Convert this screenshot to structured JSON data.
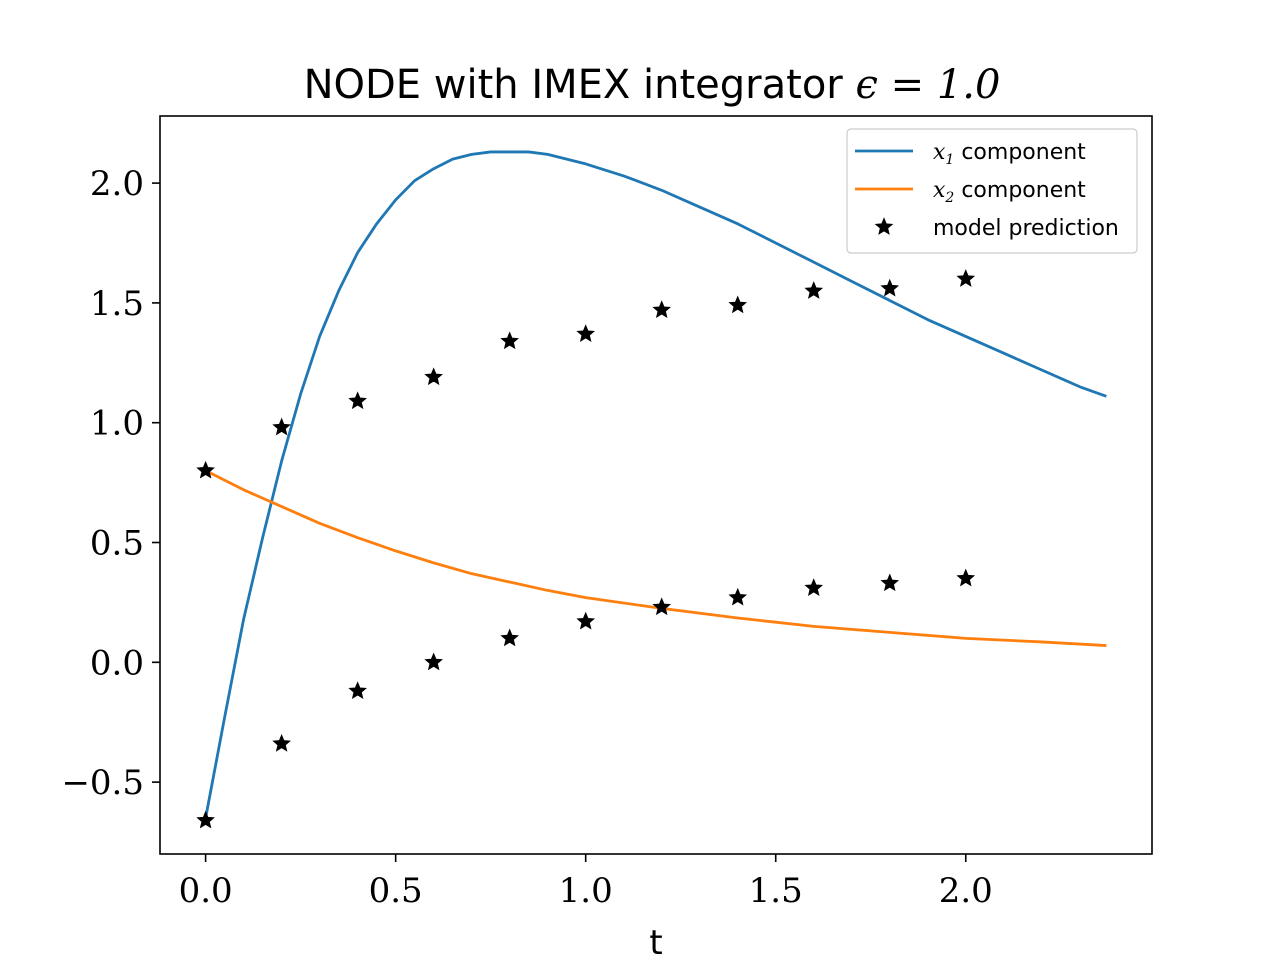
{
  "chart_data": {
    "type": "line",
    "title_text": "NODE with IMEX integrator ",
    "title_math": "ϵ = 1.0",
    "xlabel": "t",
    "ylabel": "",
    "xlim": [
      -0.12,
      2.49
    ],
    "ylim": [
      -0.8,
      2.28
    ],
    "xticks": [
      0.0,
      0.5,
      1.0,
      1.5,
      2.0
    ],
    "xtick_labels": [
      "0.0",
      "0.5",
      "1.0",
      "1.5",
      "2.0"
    ],
    "yticks": [
      -0.5,
      0.0,
      0.5,
      1.0,
      1.5,
      2.0
    ],
    "ytick_labels": [
      "−0.5",
      "0.0",
      "0.5",
      "1.0",
      "1.5",
      "2.0"
    ],
    "grid": false,
    "legend_position": "top-right",
    "series": [
      {
        "name_math": "x",
        "name_sub": "1",
        "name_text": " component",
        "kind": "line",
        "color": "#1f77b4",
        "x": [
          0.0,
          0.05,
          0.1,
          0.15,
          0.2,
          0.25,
          0.3,
          0.35,
          0.4,
          0.45,
          0.5,
          0.55,
          0.6,
          0.65,
          0.7,
          0.75,
          0.8,
          0.85,
          0.9,
          0.95,
          1.0,
          1.1,
          1.2,
          1.3,
          1.4,
          1.5,
          1.6,
          1.7,
          1.8,
          1.9,
          2.0,
          2.1,
          2.2,
          2.3,
          2.37
        ],
        "y": [
          -0.65,
          -0.23,
          0.18,
          0.52,
          0.84,
          1.12,
          1.36,
          1.55,
          1.71,
          1.83,
          1.93,
          2.01,
          2.06,
          2.1,
          2.12,
          2.13,
          2.13,
          2.13,
          2.12,
          2.1,
          2.08,
          2.03,
          1.97,
          1.9,
          1.83,
          1.75,
          1.67,
          1.59,
          1.51,
          1.43,
          1.36,
          1.29,
          1.22,
          1.15,
          1.11
        ]
      },
      {
        "name_math": "x",
        "name_sub": "2",
        "name_text": " component",
        "kind": "line",
        "color": "#ff7f0e",
        "x": [
          0.0,
          0.1,
          0.2,
          0.3,
          0.4,
          0.5,
          0.6,
          0.7,
          0.8,
          0.9,
          1.0,
          1.2,
          1.4,
          1.6,
          1.8,
          2.0,
          2.2,
          2.37
        ],
        "y": [
          0.8,
          0.72,
          0.65,
          0.58,
          0.52,
          0.465,
          0.415,
          0.37,
          0.335,
          0.3,
          0.27,
          0.225,
          0.185,
          0.15,
          0.125,
          0.1,
          0.085,
          0.07
        ]
      },
      {
        "name_text": "model prediction",
        "kind": "marker",
        "color": "#000000",
        "marker": "star",
        "points": [
          [
            0.0,
            0.8
          ],
          [
            0.2,
            0.98
          ],
          [
            0.4,
            1.09
          ],
          [
            0.6,
            1.19
          ],
          [
            0.8,
            1.34
          ],
          [
            1.0,
            1.37
          ],
          [
            1.2,
            1.47
          ],
          [
            1.4,
            1.49
          ],
          [
            1.6,
            1.55
          ],
          [
            1.8,
            1.56
          ],
          [
            2.0,
            1.6
          ],
          [
            0.0,
            -0.66
          ],
          [
            0.2,
            -0.34
          ],
          [
            0.4,
            -0.12
          ],
          [
            0.6,
            0.0
          ],
          [
            0.8,
            0.1
          ],
          [
            1.0,
            0.17
          ],
          [
            1.2,
            0.23
          ],
          [
            1.4,
            0.27
          ],
          [
            1.6,
            0.31
          ],
          [
            1.8,
            0.33
          ],
          [
            2.0,
            0.35
          ]
        ]
      }
    ]
  }
}
